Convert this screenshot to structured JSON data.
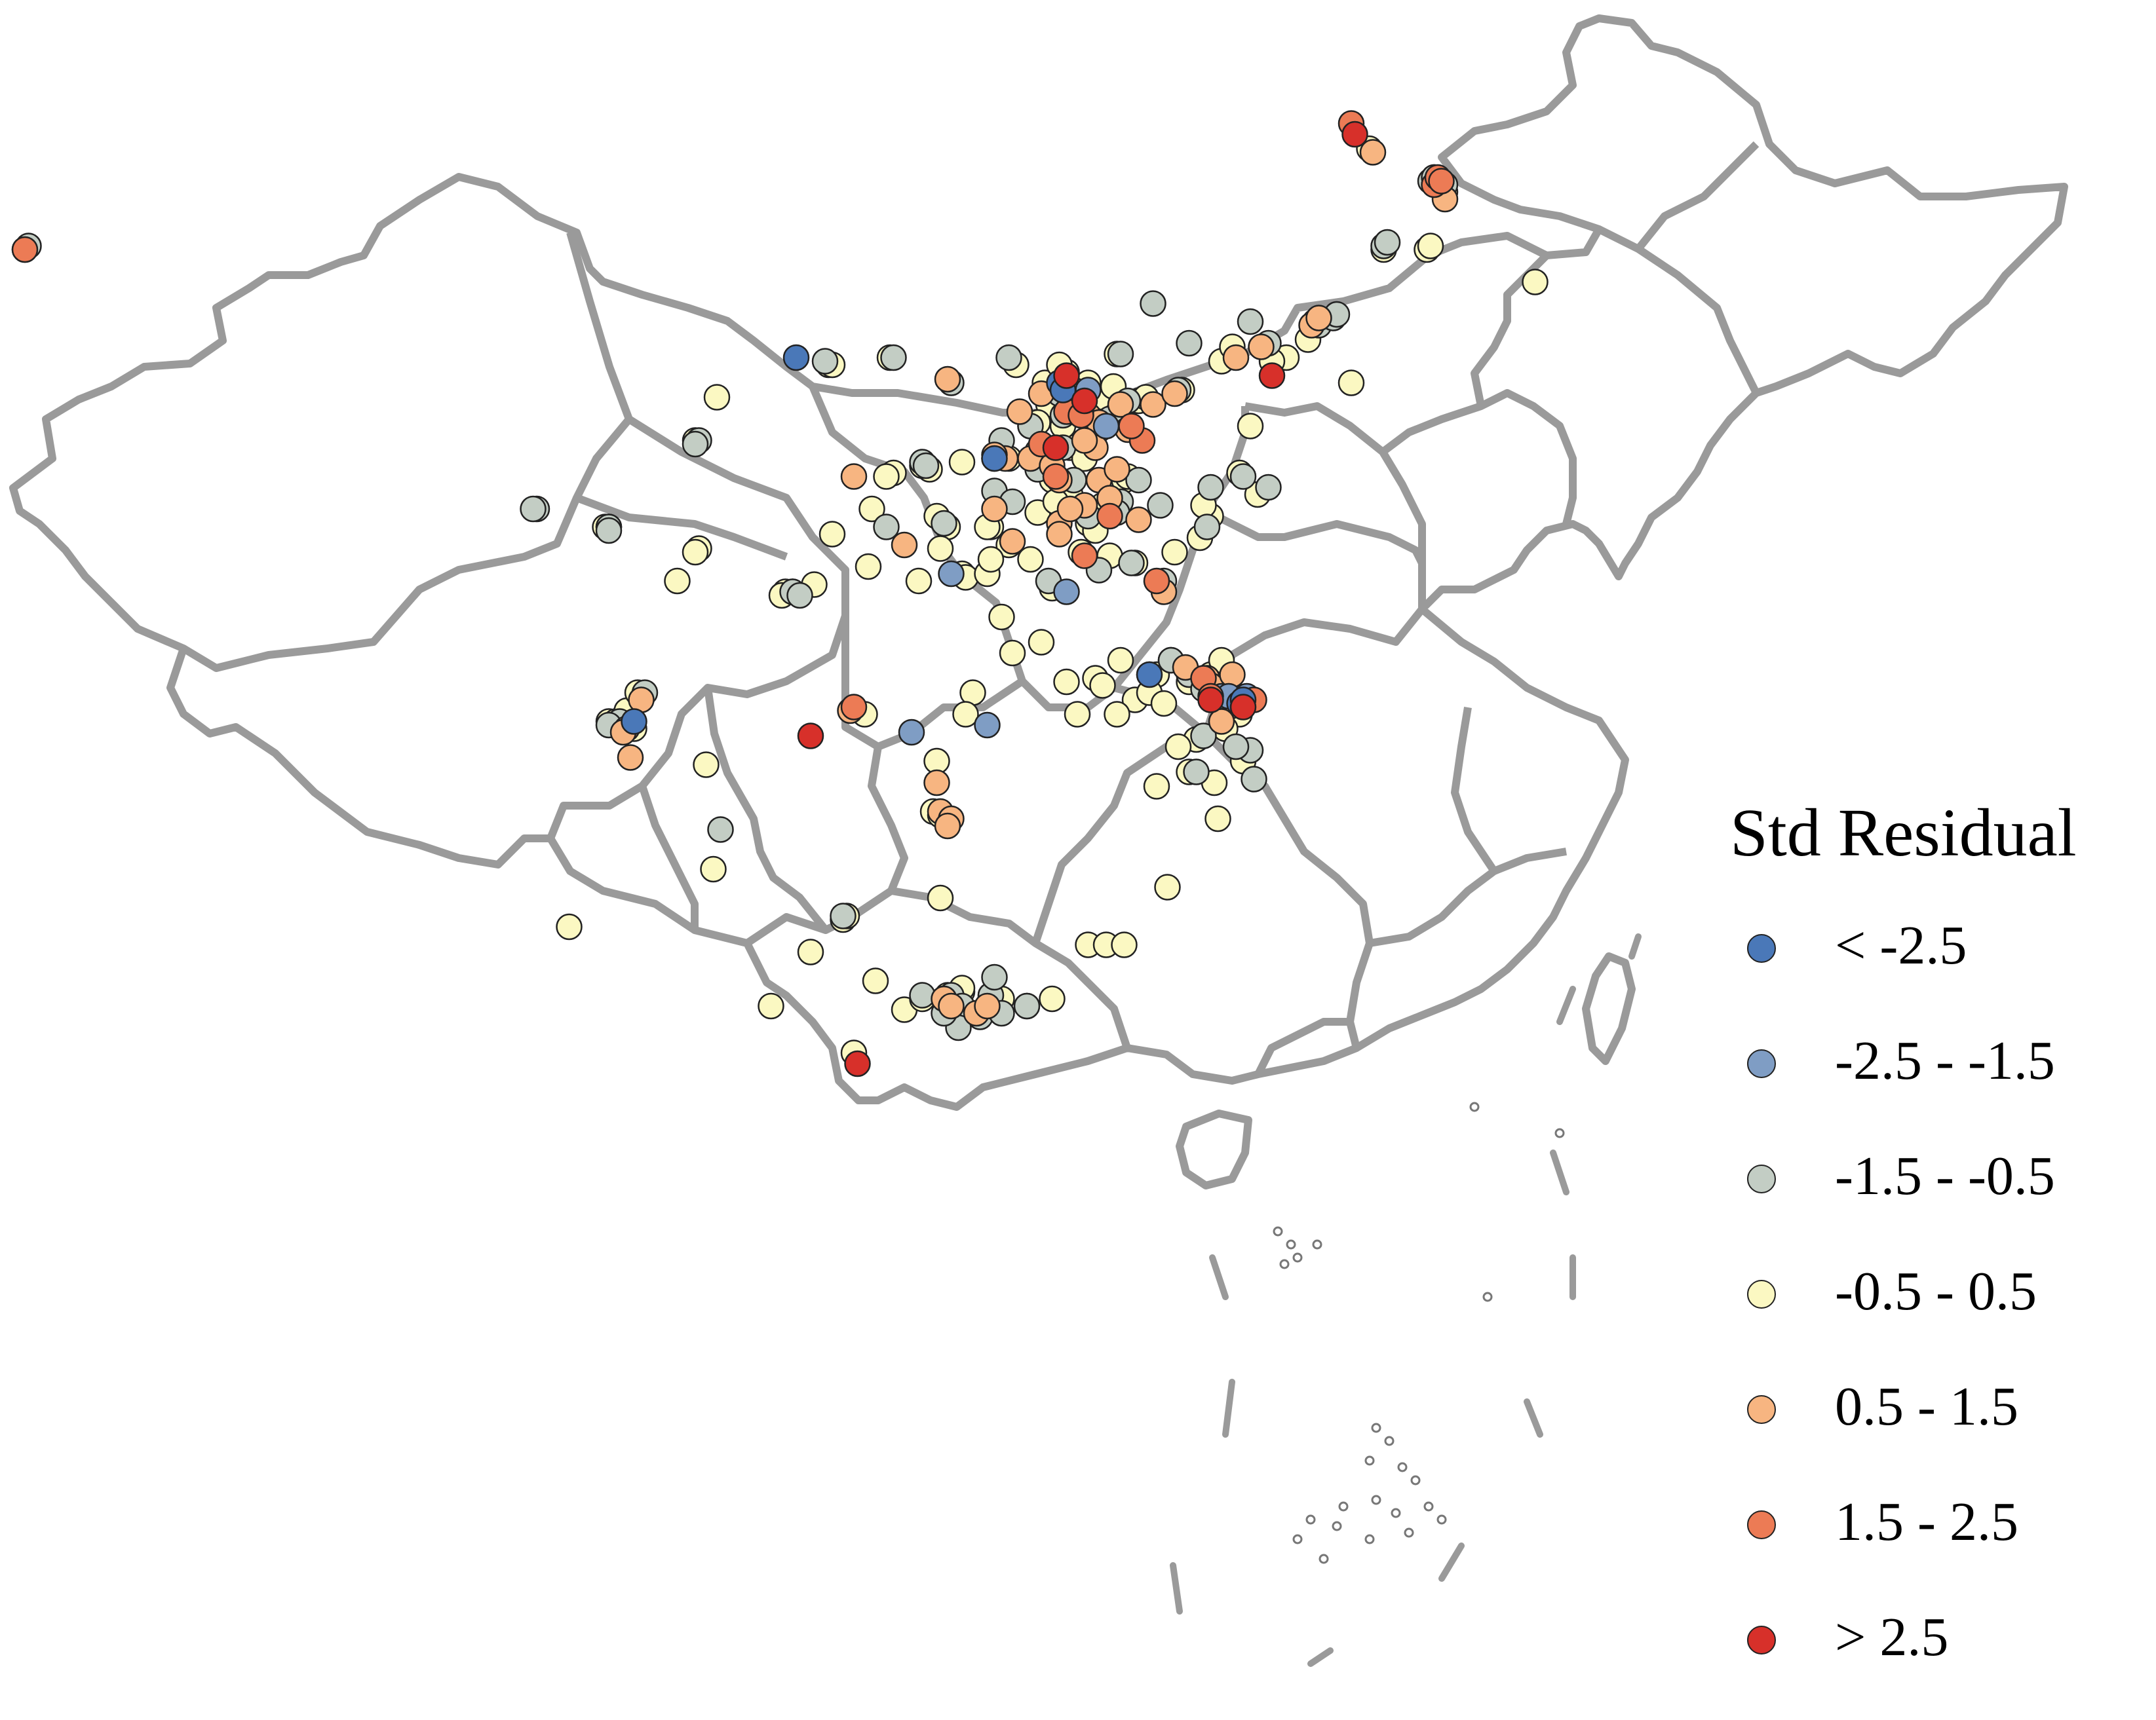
{
  "legend": {
    "title": "Std Residual",
    "classes": [
      {
        "label": "< -2.5",
        "color": "#4a78b8"
      },
      {
        "label": "-2.5 - -1.5",
        "color": "#7f9dc4"
      },
      {
        "label": "-1.5 - -0.5",
        "color": "#c3cdc4"
      },
      {
        "label": "-0.5 - 0.5",
        "color": "#fbf8c2"
      },
      {
        "label": "0.5 - 1.5",
        "color": "#f7b581"
      },
      {
        "label": "1.5 - 2.5",
        "color": "#ec7b55"
      },
      {
        "label": "> 2.5",
        "color": "#d7302a"
      }
    ]
  },
  "map_style": {
    "boundary_color": "#9a9a9a",
    "land_fill": "#ffffff"
  },
  "stations": {
    "lt_neg2_5": [
      [
        109.0,
        40.8
      ],
      [
        116.3,
        40.1
      ],
      [
        116.4,
        39.9
      ],
      [
        114.5,
        38.0
      ],
      [
        118.8,
        32.0
      ],
      [
        121.3,
        31.2
      ],
      [
        121.4,
        31.3
      ],
      [
        104.5,
        30.7
      ]
    ],
    "neg2_5_neg1_5": [
      [
        117.1,
        39.9
      ],
      [
        117.6,
        38.9
      ],
      [
        116.5,
        34.3
      ],
      [
        113.3,
        34.8
      ],
      [
        112.2,
        30.4
      ],
      [
        114.3,
        30.6
      ],
      [
        120.8,
        31.4
      ],
      [
        121.0,
        31.4
      ],
      [
        121.5,
        31.4
      ],
      [
        116.9,
        39.3
      ]
    ],
    "neg1_5_neg0_5": [
      [
        87.6,
        43.8
      ],
      [
        87.7,
        43.9
      ],
      [
        101.8,
        36.6
      ],
      [
        101.7,
        36.6
      ],
      [
        103.8,
        36.1
      ],
      [
        103.8,
        36.0
      ],
      [
        106.3,
        38.5
      ],
      [
        106.2,
        38.4
      ],
      [
        108.9,
        34.3
      ],
      [
        109.1,
        34.2
      ],
      [
        112.5,
        37.9
      ],
      [
        112.6,
        37.8
      ],
      [
        113.1,
        36.2
      ],
      [
        111.5,
        36.1
      ],
      [
        113.3,
        40.1
      ],
      [
        114.5,
        38.0
      ],
      [
        114.5,
        37.1
      ],
      [
        114.7,
        38.5
      ],
      [
        115.5,
        38.9
      ],
      [
        116.3,
        39.8
      ],
      [
        116.5,
        39.9
      ],
      [
        116.7,
        39.5
      ],
      [
        117.2,
        39.1
      ],
      [
        117.3,
        39.0
      ],
      [
        117.7,
        39.1
      ],
      [
        118.2,
        39.6
      ],
      [
        118.0,
        40.9
      ],
      [
        119.6,
        39.9
      ],
      [
        116.7,
        37.4
      ],
      [
        116.4,
        38.3
      ],
      [
        115.7,
        37.7
      ],
      [
        115.0,
        36.8
      ],
      [
        117.0,
        36.6
      ],
      [
        117.1,
        36.4
      ],
      [
        118.0,
        36.8
      ],
      [
        118.5,
        37.4
      ],
      [
        119.1,
        36.7
      ],
      [
        120.4,
        36.1
      ],
      [
        120.5,
        37.2
      ],
      [
        121.4,
        37.5
      ],
      [
        122.1,
        37.2
      ],
      [
        117.4,
        34.9
      ],
      [
        118.3,
        35.1
      ],
      [
        119.2,
        34.6
      ],
      [
        116.0,
        34.6
      ],
      [
        119.4,
        32.4
      ],
      [
        119.9,
        32.0
      ],
      [
        120.3,
        31.6
      ],
      [
        120.6,
        31.3
      ],
      [
        121.6,
        29.9
      ],
      [
        121.2,
        30.0
      ],
      [
        120.3,
        30.3
      ],
      [
        120.1,
        29.3
      ],
      [
        121.7,
        29.1
      ],
      [
        106.9,
        27.7
      ],
      [
        104.1,
        30.7
      ],
      [
        103.8,
        30.6
      ],
      [
        104.8,
        31.5
      ],
      [
        110.3,
        25.3
      ],
      [
        113.3,
        23.1
      ],
      [
        113.6,
        22.8
      ],
      [
        114.1,
        22.5
      ],
      [
        113.1,
        23.0
      ],
      [
        112.5,
        23.1
      ],
      [
        113.5,
        22.2
      ],
      [
        114.4,
        23.1
      ],
      [
        114.5,
        23.6
      ],
      [
        114.7,
        22.6
      ],
      [
        115.4,
        22.8
      ],
      [
        113.1,
        22.6
      ],
      [
        122.1,
        41.2
      ],
      [
        121.6,
        41.8
      ],
      [
        123.4,
        41.8
      ],
      [
        123.5,
        41.7
      ],
      [
        123.9,
        41.9
      ],
      [
        124.0,
        42.0
      ],
      [
        125.3,
        43.9
      ],
      [
        125.4,
        44.0
      ],
      [
        126.6,
        45.7
      ],
      [
        126.7,
        45.8
      ],
      [
        127.0,
        45.6
      ],
      [
        119.9,
        41.2
      ],
      [
        118.9,
        42.3
      ],
      [
        114.9,
        40.8
      ],
      [
        109.8,
        40.7
      ],
      [
        111.7,
        40.8
      ],
      [
        116.4,
        39.2
      ],
      [
        117.9,
        36.5
      ]
    ],
    "neg0_5_0_5": [
      [
        84.9,
        44.3
      ],
      [
        103.7,
        36.1
      ],
      [
        105.7,
        34.6
      ],
      [
        106.3,
        35.5
      ],
      [
        106.2,
        35.4
      ],
      [
        108.9,
        34.3
      ],
      [
        109.5,
        34.5
      ],
      [
        108.7,
        34.3
      ],
      [
        108.6,
        34.2
      ],
      [
        110.0,
        35.9
      ],
      [
        111.1,
        36.6
      ],
      [
        111.7,
        37.6
      ],
      [
        112.7,
        37.7
      ],
      [
        112.9,
        36.4
      ],
      [
        113.2,
        36.1
      ],
      [
        113.0,
        35.5
      ],
      [
        111.0,
        35.0
      ],
      [
        112.4,
        34.6
      ],
      [
        113.6,
        34.8
      ],
      [
        113.7,
        34.7
      ],
      [
        114.3,
        34.8
      ],
      [
        114.4,
        36.1
      ],
      [
        114.9,
        35.6
      ],
      [
        115.7,
        36.5
      ],
      [
        116.9,
        36.7
      ],
      [
        117.1,
        36.2
      ],
      [
        117.5,
        36.7
      ],
      [
        118.1,
        37.4
      ],
      [
        117.3,
        36.0
      ],
      [
        116.1,
        34.4
      ],
      [
        114.7,
        33.6
      ],
      [
        115.0,
        32.6
      ],
      [
        117.3,
        31.9
      ],
      [
        117.5,
        31.7
      ],
      [
        116.8,
        30.9
      ],
      [
        118.4,
        31.3
      ],
      [
        118.8,
        32.0
      ],
      [
        119.0,
        32.0
      ],
      [
        119.4,
        32.4
      ],
      [
        119.9,
        31.8
      ],
      [
        120.5,
        32.0
      ],
      [
        120.6,
        31.5
      ],
      [
        120.8,
        32.4
      ],
      [
        121.0,
        31.8
      ],
      [
        121.3,
        30.9
      ],
      [
        120.9,
        30.5
      ],
      [
        120.1,
        30.2
      ],
      [
        119.6,
        30.0
      ],
      [
        119.9,
        29.3
      ],
      [
        120.6,
        29.0
      ],
      [
        121.4,
        29.6
      ],
      [
        120.7,
        28.0
      ],
      [
        119.0,
        28.9
      ],
      [
        112.8,
        28.2
      ],
      [
        113.0,
        28.1
      ],
      [
        113.0,
        25.8
      ],
      [
        110.3,
        25.2
      ],
      [
        110.4,
        25.3
      ],
      [
        108.3,
        22.8
      ],
      [
        109.4,
        24.3
      ],
      [
        110.6,
        21.5
      ],
      [
        112.0,
        22.7
      ],
      [
        112.5,
        23.0
      ],
      [
        113.2,
        23.1
      ],
      [
        113.4,
        22.5
      ],
      [
        113.5,
        22.4
      ],
      [
        113.6,
        23.2
      ],
      [
        113.6,
        23.3
      ],
      [
        114.0,
        22.6
      ],
      [
        114.4,
        23.1
      ],
      [
        114.7,
        23.0
      ],
      [
        115.4,
        22.8
      ],
      [
        116.1,
        23.0
      ],
      [
        117.1,
        24.5
      ],
      [
        117.6,
        24.5
      ],
      [
        118.1,
        24.5
      ],
      [
        119.3,
        26.1
      ],
      [
        103.8,
        30.7
      ],
      [
        104.0,
        30.7
      ],
      [
        104.1,
        30.6
      ],
      [
        104.3,
        31.0
      ],
      [
        104.6,
        31.5
      ],
      [
        104.5,
        30.5
      ],
      [
        102.7,
        25.0
      ],
      [
        106.7,
        26.6
      ],
      [
        106.5,
        29.5
      ],
      [
        115.9,
        40.1
      ],
      [
        116.5,
        40.4
      ],
      [
        117.1,
        40.1
      ],
      [
        117.4,
        39.7
      ],
      [
        116.3,
        40.6
      ],
      [
        115.1,
        40.6
      ],
      [
        117.9,
        40.9
      ],
      [
        118.5,
        39.6
      ],
      [
        119.7,
        39.9
      ],
      [
        120.8,
        40.7
      ],
      [
        121.1,
        41.1
      ],
      [
        122.6,
        40.8
      ],
      [
        122.2,
        40.7
      ],
      [
        123.2,
        41.3
      ],
      [
        124.4,
        40.1
      ],
      [
        121.6,
        38.9
      ],
      [
        126.5,
        43.8
      ],
      [
        126.6,
        43.9
      ],
      [
        129.5,
        42.9
      ],
      [
        125.3,
        43.8
      ],
      [
        126.7,
        45.8
      ],
      [
        127.0,
        45.4
      ],
      [
        124.9,
        46.6
      ],
      [
        111.6,
        40.8
      ],
      [
        109.9,
        40.6
      ],
      [
        110.0,
        40.6
      ],
      [
        106.8,
        39.7
      ],
      [
        106.2,
        38.5
      ],
      [
        103.8,
        36.1
      ],
      [
        113.6,
        37.9
      ],
      [
        112.5,
        37.8
      ],
      [
        111.5,
        37.5
      ],
      [
        114.9,
        38.0
      ],
      [
        115.5,
        38.9
      ],
      [
        115.7,
        38.2
      ],
      [
        116.1,
        37.4
      ],
      [
        116.6,
        38.3
      ],
      [
        117.0,
        38.0
      ],
      [
        117.4,
        38.8
      ],
      [
        118.2,
        37.5
      ],
      [
        116.6,
        37.0
      ],
      [
        116.2,
        36.8
      ],
      [
        116.9,
        35.4
      ],
      [
        117.7,
        35.3
      ],
      [
        118.4,
        35.1
      ],
      [
        115.5,
        35.2
      ],
      [
        114.3,
        36.1
      ],
      [
        114.4,
        35.2
      ],
      [
        116.4,
        38.9
      ],
      [
        116.0,
        39.5
      ],
      [
        116.7,
        39.6
      ],
      [
        117.7,
        39.0
      ],
      [
        117.8,
        40.0
      ],
      [
        118.7,
        39.7
      ],
      [
        116.6,
        39.3
      ],
      [
        115.7,
        39.0
      ],
      [
        113.9,
        31.5
      ],
      [
        113.7,
        30.9
      ],
      [
        112.9,
        29.6
      ],
      [
        110.9,
        30.9
      ],
      [
        111.2,
        23.5
      ],
      [
        120.5,
        36.4
      ],
      [
        120.2,
        35.8
      ],
      [
        119.5,
        35.4
      ],
      [
        120.3,
        36.7
      ],
      [
        121.3,
        37.6
      ],
      [
        121.8,
        37.0
      ],
      [
        118.8,
        31.5
      ],
      [
        119.2,
        31.2
      ],
      [
        117.9,
        30.9
      ],
      [
        118.0,
        32.4
      ],
      [
        116.5,
        31.8
      ],
      [
        115.8,
        32.9
      ]
    ],
    "p0_5_1_5": [
      [
        86.0,
        44.2
      ],
      [
        104.3,
        30.5
      ],
      [
        104.2,
        30.4
      ],
      [
        104.7,
        31.3
      ],
      [
        104.4,
        29.7
      ],
      [
        112.9,
        29.0
      ],
      [
        113.0,
        28.2
      ],
      [
        113.3,
        28.0
      ],
      [
        113.2,
        27.8
      ],
      [
        113.1,
        23.0
      ],
      [
        113.3,
        22.8
      ],
      [
        114.0,
        22.6
      ],
      [
        114.3,
        22.8
      ],
      [
        117.0,
        36.7
      ],
      [
        116.3,
        36.2
      ],
      [
        116.0,
        38.0
      ],
      [
        115.5,
        38.0
      ],
      [
        114.8,
        38.0
      ],
      [
        115.2,
        39.3
      ],
      [
        115.8,
        39.8
      ],
      [
        116.7,
        39.9
      ],
      [
        117.1,
        39.2
      ],
      [
        117.4,
        39.0
      ],
      [
        118.0,
        39.5
      ],
      [
        117.3,
        38.3
      ],
      [
        118.2,
        38.8
      ],
      [
        116.3,
        37.4
      ],
      [
        117.4,
        37.4
      ],
      [
        117.7,
        36.9
      ],
      [
        118.5,
        36.3
      ],
      [
        119.2,
        34.3
      ],
      [
        120.4,
        31.9
      ],
      [
        120.7,
        31.6
      ],
      [
        120.5,
        31.7
      ],
      [
        121.0,
        31.1
      ],
      [
        120.8,
        30.7
      ],
      [
        121.1,
        32.0
      ],
      [
        119.8,
        32.2
      ],
      [
        123.3,
        41.7
      ],
      [
        123.5,
        41.9
      ],
      [
        121.9,
        41.1
      ],
      [
        121.2,
        40.8
      ],
      [
        125.0,
        46.5
      ],
      [
        127.0,
        45.2
      ],
      [
        112.0,
        35.6
      ],
      [
        110.6,
        37.5
      ],
      [
        113.2,
        40.2
      ],
      [
        116.1,
        37.8
      ],
      [
        116.6,
        36.6
      ],
      [
        114.5,
        36.6
      ],
      [
        118.9,
        39.5
      ],
      [
        119.5,
        39.8
      ],
      [
        117.0,
        38.5
      ],
      [
        115.0,
        35.7
      ],
      [
        114.5,
        38.1
      ],
      [
        117.9,
        37.7
      ],
      [
        116.3,
        35.9
      ],
      [
        110.5,
        31.0
      ]
    ],
    "p1_5_2_5": [
      [
        87.6,
        43.8
      ],
      [
        116.2,
        37.5
      ],
      [
        115.8,
        38.4
      ],
      [
        116.5,
        39.3
      ],
      [
        118.6,
        38.5
      ],
      [
        118.3,
        38.9
      ],
      [
        119.0,
        34.6
      ],
      [
        120.3,
        31.9
      ],
      [
        120.5,
        31.4
      ],
      [
        121.7,
        31.3
      ],
      [
        117.7,
        36.4
      ],
      [
        124.4,
        47.3
      ],
      [
        126.7,
        45.6
      ],
      [
        126.8,
        45.8
      ],
      [
        126.9,
        45.7
      ],
      [
        116.9,
        39.2
      ],
      [
        117.0,
        35.3
      ],
      [
        110.6,
        31.1
      ]
    ],
    "gt_2_5": [
      [
        117.0,
        39.6
      ],
      [
        116.5,
        40.3
      ],
      [
        122.2,
        40.3
      ],
      [
        116.2,
        38.3
      ],
      [
        120.5,
        31.3
      ],
      [
        121.4,
        31.1
      ],
      [
        109.4,
        30.3
      ],
      [
        110.7,
        21.2
      ],
      [
        124.5,
        47.0
      ]
    ]
  }
}
